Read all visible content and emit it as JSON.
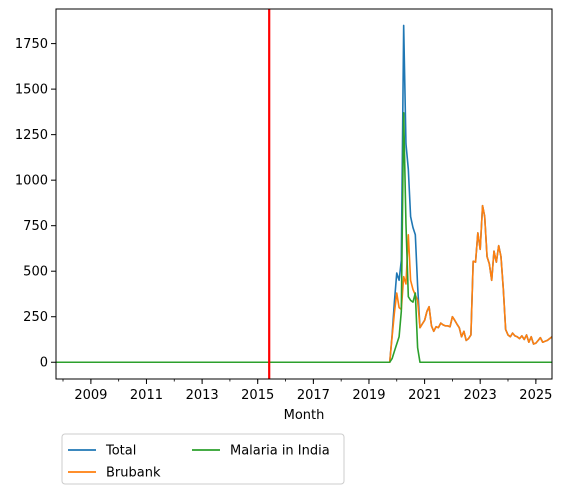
{
  "chart_data": {
    "type": "line",
    "xlabel": "Month",
    "ylabel": "",
    "xlim": [
      "2007-10-01",
      "2025-08-01"
    ],
    "ylim": [
      -92,
      1940
    ],
    "x_ticks": [
      "2009",
      "2011",
      "2013",
      "2015",
      "2017",
      "2019",
      "2021",
      "2023",
      "2025"
    ],
    "y_ticks": [
      0,
      250,
      500,
      750,
      1000,
      1250,
      1500,
      1750
    ],
    "grid": false,
    "legend": {
      "placement": "below-left",
      "columns": 2
    },
    "vertical_line": {
      "x": "2015-06-01",
      "color": "#ff0000"
    },
    "series": [
      {
        "name": "Total",
        "color": "#1f77b4",
        "points": [
          [
            "2007-10-01",
            0
          ],
          [
            "2019-10-01",
            0
          ],
          [
            "2019-11-01",
            150
          ],
          [
            "2019-12-01",
            330
          ],
          [
            "2020-01-01",
            490
          ],
          [
            "2020-02-01",
            450
          ],
          [
            "2020-03-01",
            560
          ],
          [
            "2020-04-01",
            1850
          ],
          [
            "2020-05-01",
            1200
          ],
          [
            "2020-06-01",
            1060
          ],
          [
            "2020-07-01",
            800
          ],
          [
            "2020-08-01",
            740
          ],
          [
            "2020-09-01",
            700
          ],
          [
            "2020-10-01",
            420
          ],
          [
            "2020-11-01",
            190
          ],
          [
            "2020-12-01",
            210
          ],
          [
            "2021-01-01",
            230
          ],
          [
            "2021-02-01",
            280
          ],
          [
            "2021-03-01",
            305
          ],
          [
            "2021-04-01",
            200
          ],
          [
            "2021-05-01",
            170
          ],
          [
            "2021-06-01",
            195
          ],
          [
            "2021-07-01",
            190
          ],
          [
            "2021-08-01",
            215
          ],
          [
            "2021-09-01",
            205
          ],
          [
            "2021-10-01",
            200
          ],
          [
            "2021-11-01",
            200
          ],
          [
            "2021-12-01",
            195
          ],
          [
            "2022-01-01",
            250
          ],
          [
            "2022-02-01",
            230
          ],
          [
            "2022-03-01",
            210
          ],
          [
            "2022-04-01",
            190
          ],
          [
            "2022-05-01",
            140
          ],
          [
            "2022-06-01",
            170
          ],
          [
            "2022-07-01",
            120
          ],
          [
            "2022-08-01",
            130
          ],
          [
            "2022-09-01",
            150
          ],
          [
            "2022-10-01",
            555
          ],
          [
            "2022-11-01",
            550
          ],
          [
            "2022-12-01",
            710
          ],
          [
            "2023-01-01",
            620
          ],
          [
            "2023-02-01",
            860
          ],
          [
            "2023-03-01",
            800
          ],
          [
            "2023-04-01",
            580
          ],
          [
            "2023-05-01",
            540
          ],
          [
            "2023-06-01",
            450
          ],
          [
            "2023-07-01",
            610
          ],
          [
            "2023-08-01",
            550
          ],
          [
            "2023-09-01",
            640
          ],
          [
            "2023-10-01",
            580
          ],
          [
            "2023-11-01",
            400
          ],
          [
            "2023-12-01",
            180
          ],
          [
            "2024-01-01",
            150
          ],
          [
            "2024-02-01",
            140
          ],
          [
            "2024-03-01",
            160
          ],
          [
            "2024-04-01",
            145
          ],
          [
            "2024-05-01",
            140
          ],
          [
            "2024-06-01",
            130
          ],
          [
            "2024-07-01",
            145
          ],
          [
            "2024-08-01",
            125
          ],
          [
            "2024-09-01",
            150
          ],
          [
            "2024-10-01",
            110
          ],
          [
            "2024-11-01",
            140
          ],
          [
            "2024-12-01",
            100
          ],
          [
            "2025-01-01",
            105
          ],
          [
            "2025-02-01",
            120
          ],
          [
            "2025-03-01",
            135
          ],
          [
            "2025-04-01",
            110
          ],
          [
            "2025-05-01",
            115
          ],
          [
            "2025-06-01",
            120
          ],
          [
            "2025-07-01",
            130
          ],
          [
            "2025-08-01",
            140
          ]
        ]
      },
      {
        "name": "Brubank",
        "color": "#ff7f0e",
        "points": [
          [
            "2007-10-01",
            0
          ],
          [
            "2019-10-01",
            0
          ],
          [
            "2019-11-01",
            140
          ],
          [
            "2019-12-01",
            270
          ],
          [
            "2020-01-01",
            380
          ],
          [
            "2020-02-01",
            300
          ],
          [
            "2020-03-01",
            290
          ],
          [
            "2020-04-01",
            470
          ],
          [
            "2020-05-01",
            430
          ],
          [
            "2020-06-01",
            700
          ],
          [
            "2020-07-01",
            450
          ],
          [
            "2020-08-01",
            400
          ],
          [
            "2020-09-01",
            370
          ],
          [
            "2020-10-01",
            340
          ],
          [
            "2020-11-01",
            190
          ],
          [
            "2020-12-01",
            210
          ],
          [
            "2021-01-01",
            230
          ],
          [
            "2021-02-01",
            280
          ],
          [
            "2021-03-01",
            305
          ],
          [
            "2021-04-01",
            200
          ],
          [
            "2021-05-01",
            170
          ],
          [
            "2021-06-01",
            195
          ],
          [
            "2021-07-01",
            190
          ],
          [
            "2021-08-01",
            215
          ],
          [
            "2021-09-01",
            205
          ],
          [
            "2021-10-01",
            200
          ],
          [
            "2021-11-01",
            200
          ],
          [
            "2021-12-01",
            195
          ],
          [
            "2022-01-01",
            250
          ],
          [
            "2022-02-01",
            230
          ],
          [
            "2022-03-01",
            210
          ],
          [
            "2022-04-01",
            190
          ],
          [
            "2022-05-01",
            140
          ],
          [
            "2022-06-01",
            170
          ],
          [
            "2022-07-01",
            120
          ],
          [
            "2022-08-01",
            130
          ],
          [
            "2022-09-01",
            150
          ],
          [
            "2022-10-01",
            555
          ],
          [
            "2022-11-01",
            550
          ],
          [
            "2022-12-01",
            710
          ],
          [
            "2023-01-01",
            620
          ],
          [
            "2023-02-01",
            860
          ],
          [
            "2023-03-01",
            800
          ],
          [
            "2023-04-01",
            580
          ],
          [
            "2023-05-01",
            540
          ],
          [
            "2023-06-01",
            450
          ],
          [
            "2023-07-01",
            610
          ],
          [
            "2023-08-01",
            550
          ],
          [
            "2023-09-01",
            640
          ],
          [
            "2023-10-01",
            580
          ],
          [
            "2023-11-01",
            400
          ],
          [
            "2023-12-01",
            180
          ],
          [
            "2024-01-01",
            150
          ],
          [
            "2024-02-01",
            140
          ],
          [
            "2024-03-01",
            160
          ],
          [
            "2024-04-01",
            145
          ],
          [
            "2024-05-01",
            140
          ],
          [
            "2024-06-01",
            130
          ],
          [
            "2024-07-01",
            145
          ],
          [
            "2024-08-01",
            125
          ],
          [
            "2024-09-01",
            150
          ],
          [
            "2024-10-01",
            110
          ],
          [
            "2024-11-01",
            140
          ],
          [
            "2024-12-01",
            100
          ],
          [
            "2025-01-01",
            105
          ],
          [
            "2025-02-01",
            120
          ],
          [
            "2025-03-01",
            135
          ],
          [
            "2025-04-01",
            110
          ],
          [
            "2025-05-01",
            115
          ],
          [
            "2025-06-01",
            120
          ],
          [
            "2025-07-01",
            130
          ],
          [
            "2025-08-01",
            140
          ]
        ]
      },
      {
        "name": "Malaria in India",
        "color": "#2ca02c",
        "points": [
          [
            "2007-10-01",
            0
          ],
          [
            "2019-10-01",
            0
          ],
          [
            "2019-11-01",
            20
          ],
          [
            "2019-12-01",
            60
          ],
          [
            "2020-01-01",
            100
          ],
          [
            "2020-02-01",
            140
          ],
          [
            "2020-03-01",
            280
          ],
          [
            "2020-04-01",
            1370
          ],
          [
            "2020-05-01",
            760
          ],
          [
            "2020-06-01",
            360
          ],
          [
            "2020-07-01",
            340
          ],
          [
            "2020-08-01",
            330
          ],
          [
            "2020-09-01",
            380
          ],
          [
            "2020-10-01",
            80
          ],
          [
            "2020-11-01",
            0
          ],
          [
            "2025-08-01",
            0
          ]
        ]
      }
    ]
  }
}
